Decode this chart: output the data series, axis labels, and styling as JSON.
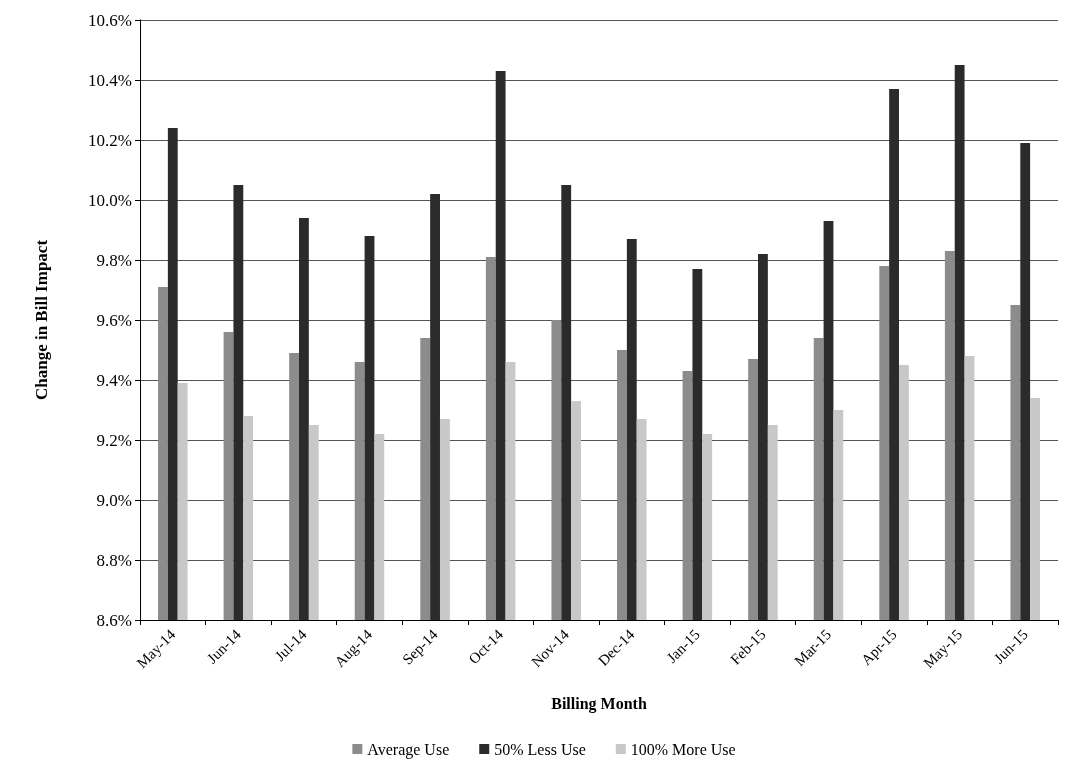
{
  "chart_data": {
    "type": "bar",
    "xlabel": "Billing Month",
    "ylabel": "Change in Bill Impact",
    "categories": [
      "May-14",
      "Jun-14",
      "Jul-14",
      "Aug-14",
      "Sep-14",
      "Oct-14",
      "Nov-14",
      "Dec-14",
      "Jan-15",
      "Feb-15",
      "Mar-15",
      "Apr-15",
      "May-15",
      "Jun-15"
    ],
    "series": [
      {
        "name": "Average Use",
        "color": "#8c8c8c",
        "values": [
          9.71,
          9.56,
          9.49,
          9.46,
          9.54,
          9.81,
          9.6,
          9.5,
          9.43,
          9.47,
          9.54,
          9.78,
          9.83,
          9.65
        ]
      },
      {
        "name": "50% Less Use",
        "color": "#2b2b2b",
        "values": [
          10.24,
          10.05,
          9.94,
          9.88,
          10.02,
          10.43,
          10.05,
          9.87,
          9.77,
          9.82,
          9.93,
          10.37,
          10.45,
          10.19
        ]
      },
      {
        "name": "100% More Use",
        "color": "#c8c8c8",
        "values": [
          9.39,
          9.28,
          9.25,
          9.22,
          9.27,
          9.46,
          9.33,
          9.27,
          9.22,
          9.25,
          9.3,
          9.45,
          9.48,
          9.34
        ]
      }
    ],
    "ylim": [
      8.6,
      10.6
    ],
    "yticks": [
      {
        "value": 8.6,
        "label": "8.6%"
      },
      {
        "value": 8.8,
        "label": "8.8%"
      },
      {
        "value": 9.0,
        "label": "9.0%"
      },
      {
        "value": 9.2,
        "label": "9.2%"
      },
      {
        "value": 9.4,
        "label": "9.4%"
      },
      {
        "value": 9.6,
        "label": "9.6%"
      },
      {
        "value": 9.8,
        "label": "9.8%"
      },
      {
        "value": 10.0,
        "label": "10.0%"
      },
      {
        "value": 10.2,
        "label": "10.2%"
      },
      {
        "value": 10.4,
        "label": "10.4%"
      },
      {
        "value": 10.6,
        "label": "10.6%"
      }
    ],
    "grid": "y",
    "legend": "bottom"
  }
}
